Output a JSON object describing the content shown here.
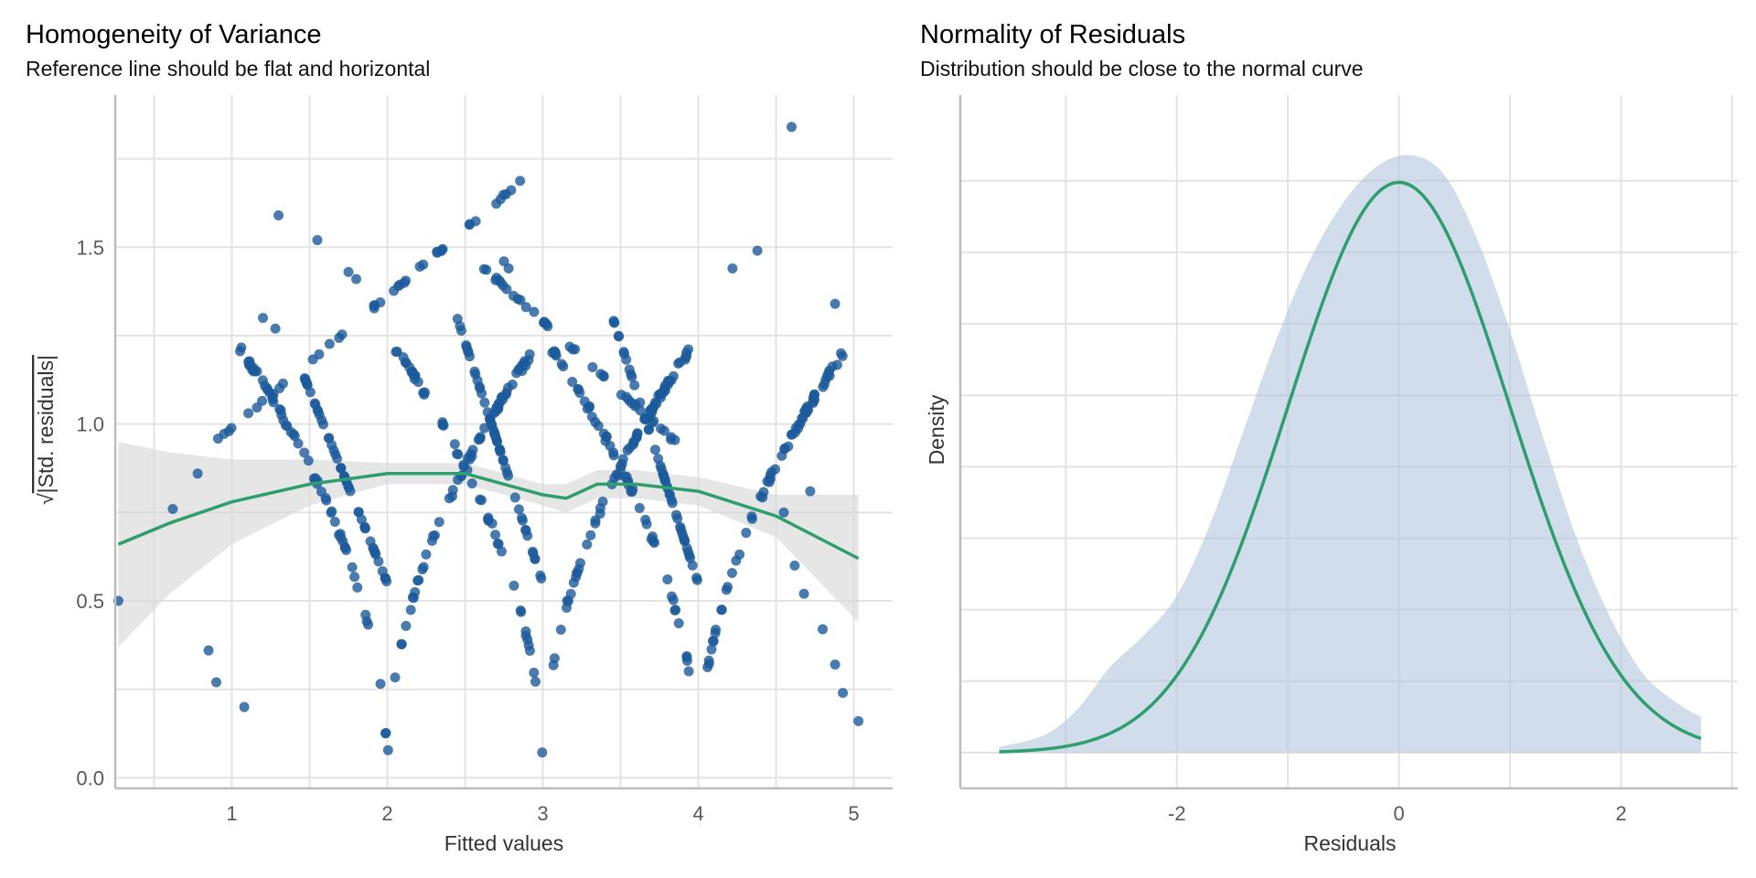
{
  "chart_data": [
    {
      "type": "scatter",
      "title": "Homogeneity of Variance",
      "subtitle": "Reference line should be flat and horizontal",
      "xlabel": "Fitted values",
      "ylabel_radical": "√",
      "ylabel": "|Std. residuals|",
      "xlim": [
        0.25,
        5.25
      ],
      "ylim": [
        -0.03,
        1.93
      ],
      "x_ticks": [
        1,
        2,
        3,
        4,
        5
      ],
      "x_tick_labels": [
        "1",
        "2",
        "3",
        "4",
        "5"
      ],
      "y_ticks": [
        0.0,
        0.5,
        1.0,
        1.5
      ],
      "y_tick_labels": [
        "0.0",
        "0.5",
        "1.0",
        "1.5"
      ],
      "grid": true,
      "point_color": "#1b5a9b",
      "smooth_color": "#2e9e6e",
      "band_color": "#d9d9d9",
      "v_centers": [
        2.0,
        3.0,
        4.0
      ],
      "diag_lines": [
        {
          "x0": 0.9,
          "y0": 0.95,
          "x1": 2.95,
          "y1": 1.72
        },
        {
          "x0": 2.6,
          "y0": 1.45,
          "x1": 3.85,
          "y1": 0.95
        }
      ],
      "isolated_points": [
        {
          "x": 0.27,
          "y": 0.5
        },
        {
          "x": 0.62,
          "y": 0.76
        },
        {
          "x": 0.78,
          "y": 0.86
        },
        {
          "x": 0.85,
          "y": 0.36
        },
        {
          "x": 0.9,
          "y": 0.27
        },
        {
          "x": 1.08,
          "y": 0.2
        },
        {
          "x": 1.3,
          "y": 1.59
        },
        {
          "x": 1.55,
          "y": 1.52
        },
        {
          "x": 1.2,
          "y": 1.3
        },
        {
          "x": 1.28,
          "y": 1.27
        },
        {
          "x": 4.6,
          "y": 1.84
        },
        {
          "x": 4.88,
          "y": 1.34
        },
        {
          "x": 4.38,
          "y": 1.49
        },
        {
          "x": 4.22,
          "y": 1.44
        },
        {
          "x": 5.03,
          "y": 0.16
        },
        {
          "x": 4.93,
          "y": 0.24
        },
        {
          "x": 4.88,
          "y": 0.32
        },
        {
          "x": 4.8,
          "y": 0.42
        },
        {
          "x": 4.68,
          "y": 0.52
        },
        {
          "x": 4.62,
          "y": 0.6
        },
        {
          "x": 4.72,
          "y": 0.81
        },
        {
          "x": 4.55,
          "y": 0.75
        },
        {
          "x": 1.75,
          "y": 1.43
        },
        {
          "x": 1.8,
          "y": 1.41
        },
        {
          "x": 2.75,
          "y": 1.46
        },
        {
          "x": 2.78,
          "y": 1.44
        }
      ],
      "smooth_line": [
        {
          "x": 0.27,
          "y": 0.66
        },
        {
          "x": 0.6,
          "y": 0.72
        },
        {
          "x": 1.0,
          "y": 0.78
        },
        {
          "x": 1.5,
          "y": 0.83
        },
        {
          "x": 2.0,
          "y": 0.86
        },
        {
          "x": 2.5,
          "y": 0.86
        },
        {
          "x": 2.75,
          "y": 0.83
        },
        {
          "x": 3.0,
          "y": 0.8
        },
        {
          "x": 3.15,
          "y": 0.79
        },
        {
          "x": 3.35,
          "y": 0.83
        },
        {
          "x": 3.6,
          "y": 0.83
        },
        {
          "x": 4.0,
          "y": 0.81
        },
        {
          "x": 4.5,
          "y": 0.74
        },
        {
          "x": 5.03,
          "y": 0.62
        }
      ],
      "band_upper": [
        {
          "x": 0.27,
          "y": 0.95
        },
        {
          "x": 0.6,
          "y": 0.92
        },
        {
          "x": 1.0,
          "y": 0.9
        },
        {
          "x": 1.5,
          "y": 0.9
        },
        {
          "x": 2.0,
          "y": 0.89
        },
        {
          "x": 2.5,
          "y": 0.89
        },
        {
          "x": 2.75,
          "y": 0.86
        },
        {
          "x": 3.0,
          "y": 0.83
        },
        {
          "x": 3.15,
          "y": 0.83
        },
        {
          "x": 3.35,
          "y": 0.87
        },
        {
          "x": 3.6,
          "y": 0.87
        },
        {
          "x": 4.0,
          "y": 0.85
        },
        {
          "x": 4.5,
          "y": 0.8
        },
        {
          "x": 5.03,
          "y": 0.8
        }
      ],
      "band_lower": [
        {
          "x": 0.27,
          "y": 0.37
        },
        {
          "x": 0.6,
          "y": 0.52
        },
        {
          "x": 1.0,
          "y": 0.66
        },
        {
          "x": 1.5,
          "y": 0.77
        },
        {
          "x": 2.0,
          "y": 0.83
        },
        {
          "x": 2.5,
          "y": 0.83
        },
        {
          "x": 2.75,
          "y": 0.8
        },
        {
          "x": 3.0,
          "y": 0.77
        },
        {
          "x": 3.15,
          "y": 0.75
        },
        {
          "x": 3.35,
          "y": 0.79
        },
        {
          "x": 3.6,
          "y": 0.79
        },
        {
          "x": 4.0,
          "y": 0.77
        },
        {
          "x": 4.5,
          "y": 0.68
        },
        {
          "x": 5.03,
          "y": 0.44
        }
      ]
    },
    {
      "type": "area",
      "title": "Normality of Residuals",
      "subtitle": "Distribution should be close to the normal curve",
      "xlabel": "Residuals",
      "ylabel": "Density",
      "xlim": [
        -3.95,
        3.05
      ],
      "ylim": [
        -0.025,
        0.46
      ],
      "x_ticks": [
        -2,
        0,
        2
      ],
      "x_tick_labels": [
        "-2",
        "0",
        "2"
      ],
      "grid": true,
      "fill_color": "#b3c6de",
      "normal_color": "#2e9e6e",
      "normal_mean": 0.0,
      "normal_sd": 1.0,
      "x_range": [
        -3.6,
        2.72
      ],
      "density": [
        {
          "x": -3.6,
          "y": 0.004
        },
        {
          "x": -3.2,
          "y": 0.012
        },
        {
          "x": -2.9,
          "y": 0.03
        },
        {
          "x": -2.6,
          "y": 0.06
        },
        {
          "x": -2.3,
          "y": 0.082
        },
        {
          "x": -2.0,
          "y": 0.11
        },
        {
          "x": -1.7,
          "y": 0.16
        },
        {
          "x": -1.4,
          "y": 0.225
        },
        {
          "x": -1.1,
          "y": 0.29
        },
        {
          "x": -0.8,
          "y": 0.345
        },
        {
          "x": -0.5,
          "y": 0.385
        },
        {
          "x": -0.2,
          "y": 0.41
        },
        {
          "x": 0.1,
          "y": 0.418
        },
        {
          "x": 0.4,
          "y": 0.405
        },
        {
          "x": 0.7,
          "y": 0.36
        },
        {
          "x": 1.0,
          "y": 0.295
        },
        {
          "x": 1.3,
          "y": 0.22
        },
        {
          "x": 1.6,
          "y": 0.15
        },
        {
          "x": 1.9,
          "y": 0.095
        },
        {
          "x": 2.2,
          "y": 0.055
        },
        {
          "x": 2.5,
          "y": 0.035
        },
        {
          "x": 2.72,
          "y": 0.025
        }
      ]
    }
  ]
}
